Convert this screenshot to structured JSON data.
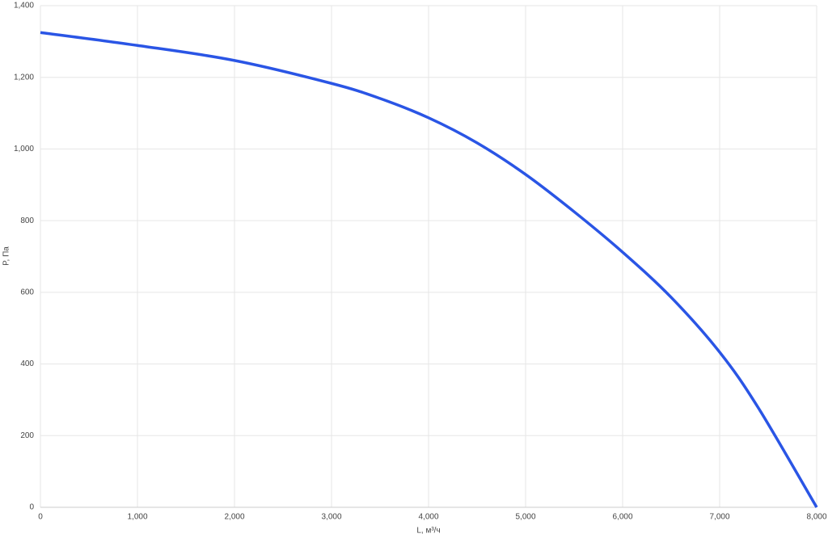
{
  "chart_data": {
    "type": "line",
    "x_label": "L, м³/ч",
    "y_label": "P, Па",
    "x": [
      0,
      1000,
      2000,
      3000,
      3500,
      4000,
      4500,
      5000,
      5500,
      6000,
      6500,
      7000,
      7400,
      8000
    ],
    "series": [
      {
        "color": "#2a55e5",
        "values": [
          1325,
          1289,
          1247,
          1183,
          1141,
          1087,
          1017,
          929,
          825,
          712,
          586,
          433,
          277,
          0
        ]
      }
    ],
    "xlim": [
      0,
      8000
    ],
    "xticks": [
      0,
      {
        "value": 1000,
        "label": "1,000"
      },
      {
        "value": 2000,
        "label": "2,000"
      },
      {
        "value": 3000,
        "label": "3,000"
      },
      {
        "value": 4000,
        "label": "4,000"
      },
      {
        "value": 5000,
        "label": "5,000"
      },
      {
        "value": 6000,
        "label": "6,000"
      },
      {
        "value": 7000,
        "label": "7,000"
      },
      {
        "value": 8000,
        "label": "8,000"
      }
    ],
    "ylim": [
      0,
      1400
    ],
    "yticks": [
      0,
      200,
      400,
      600,
      800,
      {
        "value": 1000,
        "label": "1,000"
      },
      {
        "value": 1200,
        "label": "1,200"
      },
      {
        "value": 1400,
        "label": "1,400"
      }
    ],
    "grid": true
  }
}
